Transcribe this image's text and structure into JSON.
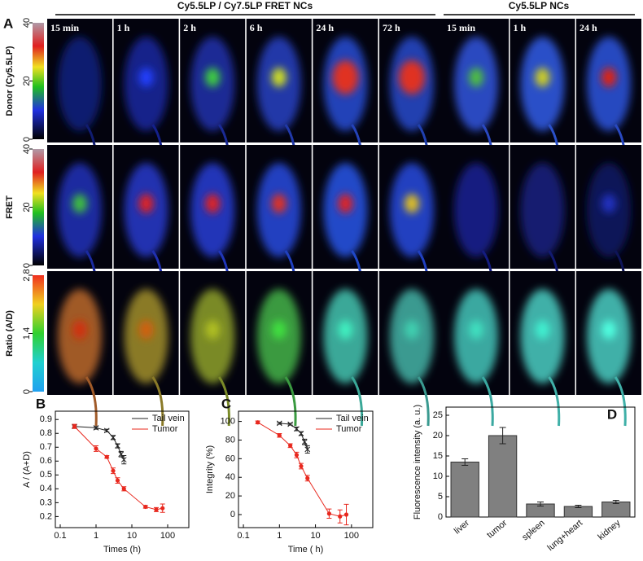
{
  "panel_a": {
    "label": "A",
    "groups": [
      "Cy5.5LP / Cy7.5LP FRET NCs",
      "Cy5.5LP NCs"
    ],
    "times": [
      "15 min",
      "1 h",
      "2 h",
      "6 h",
      "24 h",
      "72 h",
      "15 min",
      "1 h",
      "24 h"
    ],
    "rows": [
      {
        "label": "Donor (Cy5.5LP)",
        "colorbar": {
          "lim": [
            0,
            40
          ],
          "ticks": [
            0,
            20,
            40
          ]
        }
      },
      {
        "label": "FRET",
        "colorbar": {
          "lim": [
            0,
            40
          ],
          "ticks": [
            0,
            20,
            40
          ]
        }
      },
      {
        "label": "Ratio (A/D)",
        "colorbar": {
          "lim": [
            0,
            2.8
          ],
          "ticks": [
            0,
            1.4,
            2.8
          ]
        }
      }
    ]
  },
  "chart_data": [
    {
      "type": "line",
      "panel": "B",
      "x_label": "Times (h)",
      "y_label": "A / (A+D)",
      "log_x": true,
      "xlim": [
        0.073,
        390
      ],
      "xticks": [
        0.1,
        1,
        10,
        100
      ],
      "ylim": [
        0.12,
        0.96
      ],
      "yticks": [
        0.2,
        0.3,
        0.4,
        0.5,
        0.6,
        0.7,
        0.8,
        0.9
      ],
      "series": [
        {
          "name": "Tail vein",
          "color": "#222222",
          "x": [
            0.25,
            1,
            2,
            3,
            4,
            5,
            6
          ],
          "values": [
            0.85,
            0.84,
            0.82,
            0.77,
            0.71,
            0.65,
            0.61
          ],
          "errors": [
            0.01,
            0.01,
            0.01,
            0.015,
            0.015,
            0.02,
            0.03
          ]
        },
        {
          "name": "Tumor",
          "color": "#e8281e",
          "x": [
            0.25,
            1,
            2,
            3,
            4,
            6,
            24,
            48,
            72
          ],
          "values": [
            0.85,
            0.69,
            0.63,
            0.53,
            0.46,
            0.4,
            0.27,
            0.25,
            0.26
          ],
          "errors": [
            0.015,
            0.02,
            0.01,
            0.02,
            0.02,
            0.015,
            0.01,
            0.015,
            0.03
          ]
        }
      ]
    },
    {
      "type": "line",
      "panel": "C",
      "x_label": "Time ( h)",
      "y_label": "Integrity (%)",
      "log_x": true,
      "xlim": [
        0.073,
        390
      ],
      "xticks": [
        0.1,
        1,
        10,
        100
      ],
      "ylim": [
        -14,
        111
      ],
      "yticks": [
        0,
        20,
        40,
        60,
        80,
        100
      ],
      "series": [
        {
          "name": "Tail vein",
          "color": "#222222",
          "x": [
            1,
            2,
            3,
            4,
            5,
            6
          ],
          "values": [
            98,
            97,
            92,
            87,
            78,
            70
          ],
          "errors": [
            1,
            1,
            2,
            2,
            3,
            4
          ]
        },
        {
          "name": "Tumor",
          "color": "#e8281e",
          "x": [
            0.25,
            1,
            2,
            3,
            4,
            6,
            24,
            48,
            72
          ],
          "values": [
            99,
            85,
            74,
            64,
            52,
            39,
            1,
            -2,
            0
          ],
          "errors": [
            1.5,
            2,
            2,
            3,
            3,
            3,
            5,
            7,
            11
          ]
        }
      ]
    },
    {
      "type": "bar",
      "panel": "D",
      "y_label": "Fluorescence intensity (a. u.)",
      "categories": [
        "liver",
        "tumor",
        "spleen",
        "lung+heart",
        "kidney"
      ],
      "values": [
        13.5,
        20,
        3.2,
        2.6,
        3.7
      ],
      "errors": [
        0.8,
        2,
        0.5,
        0.3,
        0.4
      ],
      "color": "#808080",
      "ylim": [
        0,
        27
      ],
      "yticks": [
        0,
        5,
        10,
        15,
        20,
        25
      ]
    }
  ]
}
